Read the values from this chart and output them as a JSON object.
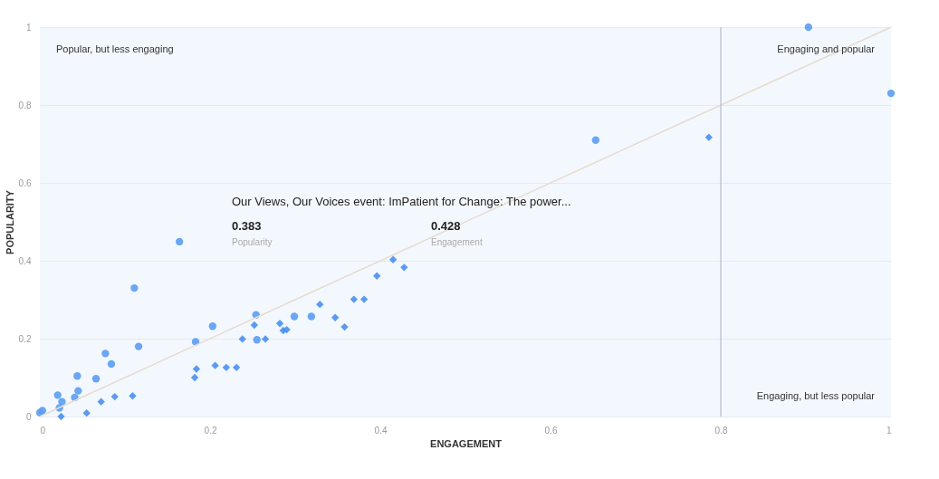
{
  "chart_data": {
    "type": "scatter",
    "xlabel": "ENGAGEMENT",
    "ylabel": "POPULARITY",
    "xlim": [
      0,
      1
    ],
    "ylim": [
      0,
      1
    ],
    "xticks": [
      0,
      0.2,
      0.4,
      0.6,
      0.8,
      1
    ],
    "yticks": [
      0,
      0.2,
      0.4,
      0.6,
      0.8,
      1
    ],
    "grid": "y",
    "series": [
      {
        "color": "#5b9cf2",
        "marker": "circle",
        "x": [
          0.0,
          0.003,
          0.021,
          0.026,
          0.023,
          0.044,
          0.045,
          0.041,
          0.066,
          0.077,
          0.084,
          0.111,
          0.116,
          0.164,
          0.183,
          0.203,
          0.254,
          0.255,
          0.299,
          0.319,
          0.653,
          0.903,
          1.0
        ],
        "values": [
          0.01,
          0.015,
          0.055,
          0.038,
          0.022,
          0.104,
          0.066,
          0.049,
          0.097,
          0.162,
          0.135,
          0.33,
          0.18,
          0.449,
          0.192,
          0.232,
          0.261,
          0.197,
          0.257,
          0.257,
          0.71,
          1.0,
          0.83
        ]
      },
      {
        "color": "#4a8ff0",
        "marker": "diamond",
        "x": [
          0.025,
          0.055,
          0.072,
          0.088,
          0.109,
          0.182,
          0.184,
          0.206,
          0.219,
          0.231,
          0.238,
          0.252,
          0.265,
          0.282,
          0.286,
          0.29,
          0.329,
          0.347,
          0.358,
          0.369,
          0.381,
          0.396,
          0.415,
          0.428,
          0.786
        ],
        "values": [
          0.0,
          0.009,
          0.038,
          0.051,
          0.053,
          0.1,
          0.122,
          0.131,
          0.126,
          0.126,
          0.199,
          0.235,
          0.199,
          0.239,
          0.221,
          0.223,
          0.288,
          0.254,
          0.23,
          0.301,
          0.301,
          0.361,
          0.403,
          0.383,
          0.717
        ]
      },
      {
        "type": "line",
        "color": "#e6dccd",
        "x": [
          0,
          1
        ],
        "values": [
          0,
          1
        ]
      }
    ],
    "ref_lines": [
      {
        "axis": "x",
        "value": 0.8,
        "color": "#a7b0c0"
      }
    ],
    "annotations": [
      "Popular, but less engaging",
      "Engaging and popular",
      "Engaging, but less popular",
      "Our Views, Our Voices event: ImPatient for Change: The power...",
      "0.383",
      "Popularity",
      "0.428",
      "Engagement"
    ]
  }
}
